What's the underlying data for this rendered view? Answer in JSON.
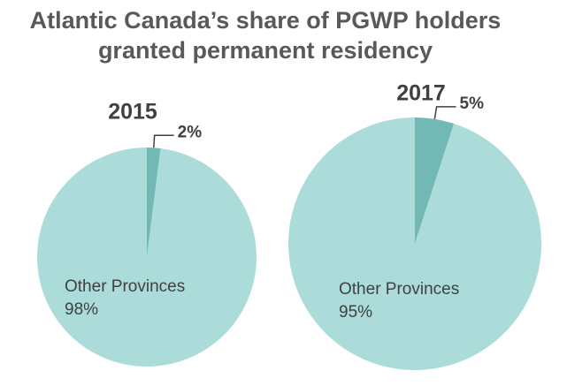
{
  "title": "Atlantic Canada’s share of PGWP holders granted permanent residency",
  "chart_data": [
    {
      "type": "pie",
      "title": "2015",
      "categories": [
        null,
        "Other Provinces"
      ],
      "values": [
        2,
        98
      ],
      "value_labels": [
        "2%",
        "98%"
      ],
      "colors": [
        "#72b8b4",
        "#acdcda"
      ]
    },
    {
      "type": "pie",
      "title": "2017",
      "categories": [
        null,
        "Other Provinces"
      ],
      "values": [
        5,
        95
      ],
      "value_labels": [
        "5%",
        "95%"
      ],
      "colors": [
        "#72b8b4",
        "#acdcda"
      ]
    }
  ]
}
